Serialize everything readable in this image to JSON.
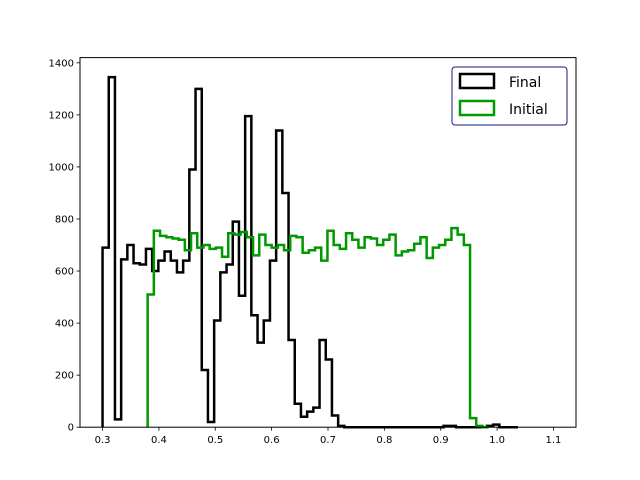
{
  "chart_data": {
    "type": "histogram-step",
    "title": "",
    "xlabel": "",
    "ylabel": "",
    "xlim": [
      0.26,
      1.14
    ],
    "ylim": [
      0,
      1420
    ],
    "xticks": [
      0.3,
      0.4,
      0.5,
      0.6,
      0.7,
      0.8,
      0.9,
      1.0,
      1.1
    ],
    "xtick_labels": [
      "0.3",
      "0.4",
      "0.5",
      "0.6",
      "0.7",
      "0.8",
      "0.9",
      "1.0",
      "1.1"
    ],
    "yticks": [
      0,
      200,
      400,
      600,
      800,
      1000,
      1200,
      1400
    ],
    "ytick_labels": [
      "0",
      "200",
      "400",
      "600",
      "800",
      "1000",
      "1200",
      "1400"
    ],
    "grid": false,
    "legend_position": "top-right",
    "series": [
      {
        "name": "Final",
        "color": "#000000",
        "bin_edges": [
          0.3,
          0.311,
          0.322,
          0.333,
          0.344,
          0.355,
          0.366,
          0.377,
          0.388,
          0.399,
          0.41,
          0.421,
          0.432,
          0.443,
          0.454,
          0.465,
          0.476,
          0.487,
          0.498,
          0.509,
          0.52,
          0.531,
          0.542,
          0.553,
          0.564,
          0.575,
          0.586,
          0.597,
          0.608,
          0.619,
          0.63,
          0.641,
          0.652,
          0.663,
          0.674,
          0.685,
          0.696,
          0.707,
          0.718,
          0.729,
          0.74,
          0.751,
          0.762,
          0.773,
          0.784,
          0.795,
          0.806,
          0.817,
          0.828,
          0.839,
          0.85,
          0.861,
          0.872,
          0.883,
          0.894,
          0.905,
          0.916,
          0.927,
          0.938,
          0.949,
          0.96,
          0.971,
          0.982,
          0.993,
          1.004,
          1.015,
          1.026,
          1.037
        ],
        "counts": [
          690,
          1345,
          30,
          645,
          700,
          630,
          625,
          685,
          600,
          640,
          675,
          640,
          595,
          640,
          990,
          1300,
          220,
          20,
          410,
          595,
          625,
          790,
          505,
          1195,
          430,
          325,
          410,
          640,
          1140,
          900,
          335,
          90,
          40,
          60,
          75,
          335,
          260,
          45,
          5,
          0,
          0,
          0,
          0,
          0,
          0,
          0,
          0,
          0,
          0,
          0,
          0,
          0,
          0,
          0,
          0,
          5,
          5,
          0,
          0,
          0,
          0,
          0,
          5,
          10,
          0,
          0,
          0
        ]
      },
      {
        "name": "Initial",
        "color": "#009900",
        "bin_edges": [
          0.38,
          0.391,
          0.402,
          0.413,
          0.424,
          0.435,
          0.446,
          0.457,
          0.468,
          0.479,
          0.49,
          0.501,
          0.512,
          0.523,
          0.534,
          0.545,
          0.556,
          0.567,
          0.578,
          0.589,
          0.6,
          0.611,
          0.622,
          0.633,
          0.644,
          0.655,
          0.666,
          0.677,
          0.688,
          0.699,
          0.71,
          0.721,
          0.732,
          0.743,
          0.754,
          0.765,
          0.776,
          0.787,
          0.798,
          0.809,
          0.82,
          0.831,
          0.842,
          0.853,
          0.864,
          0.875,
          0.886,
          0.897,
          0.908,
          0.919,
          0.93,
          0.941,
          0.952,
          0.963,
          0.974,
          0.985
        ],
        "counts": [
          510,
          755,
          735,
          730,
          725,
          720,
          680,
          745,
          690,
          700,
          685,
          690,
          655,
          745,
          740,
          750,
          730,
          660,
          740,
          700,
          690,
          700,
          680,
          735,
          730,
          670,
          680,
          690,
          640,
          755,
          700,
          685,
          745,
          720,
          690,
          730,
          725,
          700,
          720,
          740,
          660,
          675,
          680,
          705,
          730,
          650,
          690,
          700,
          720,
          765,
          740,
          700,
          35,
          5,
          0
        ]
      }
    ]
  }
}
